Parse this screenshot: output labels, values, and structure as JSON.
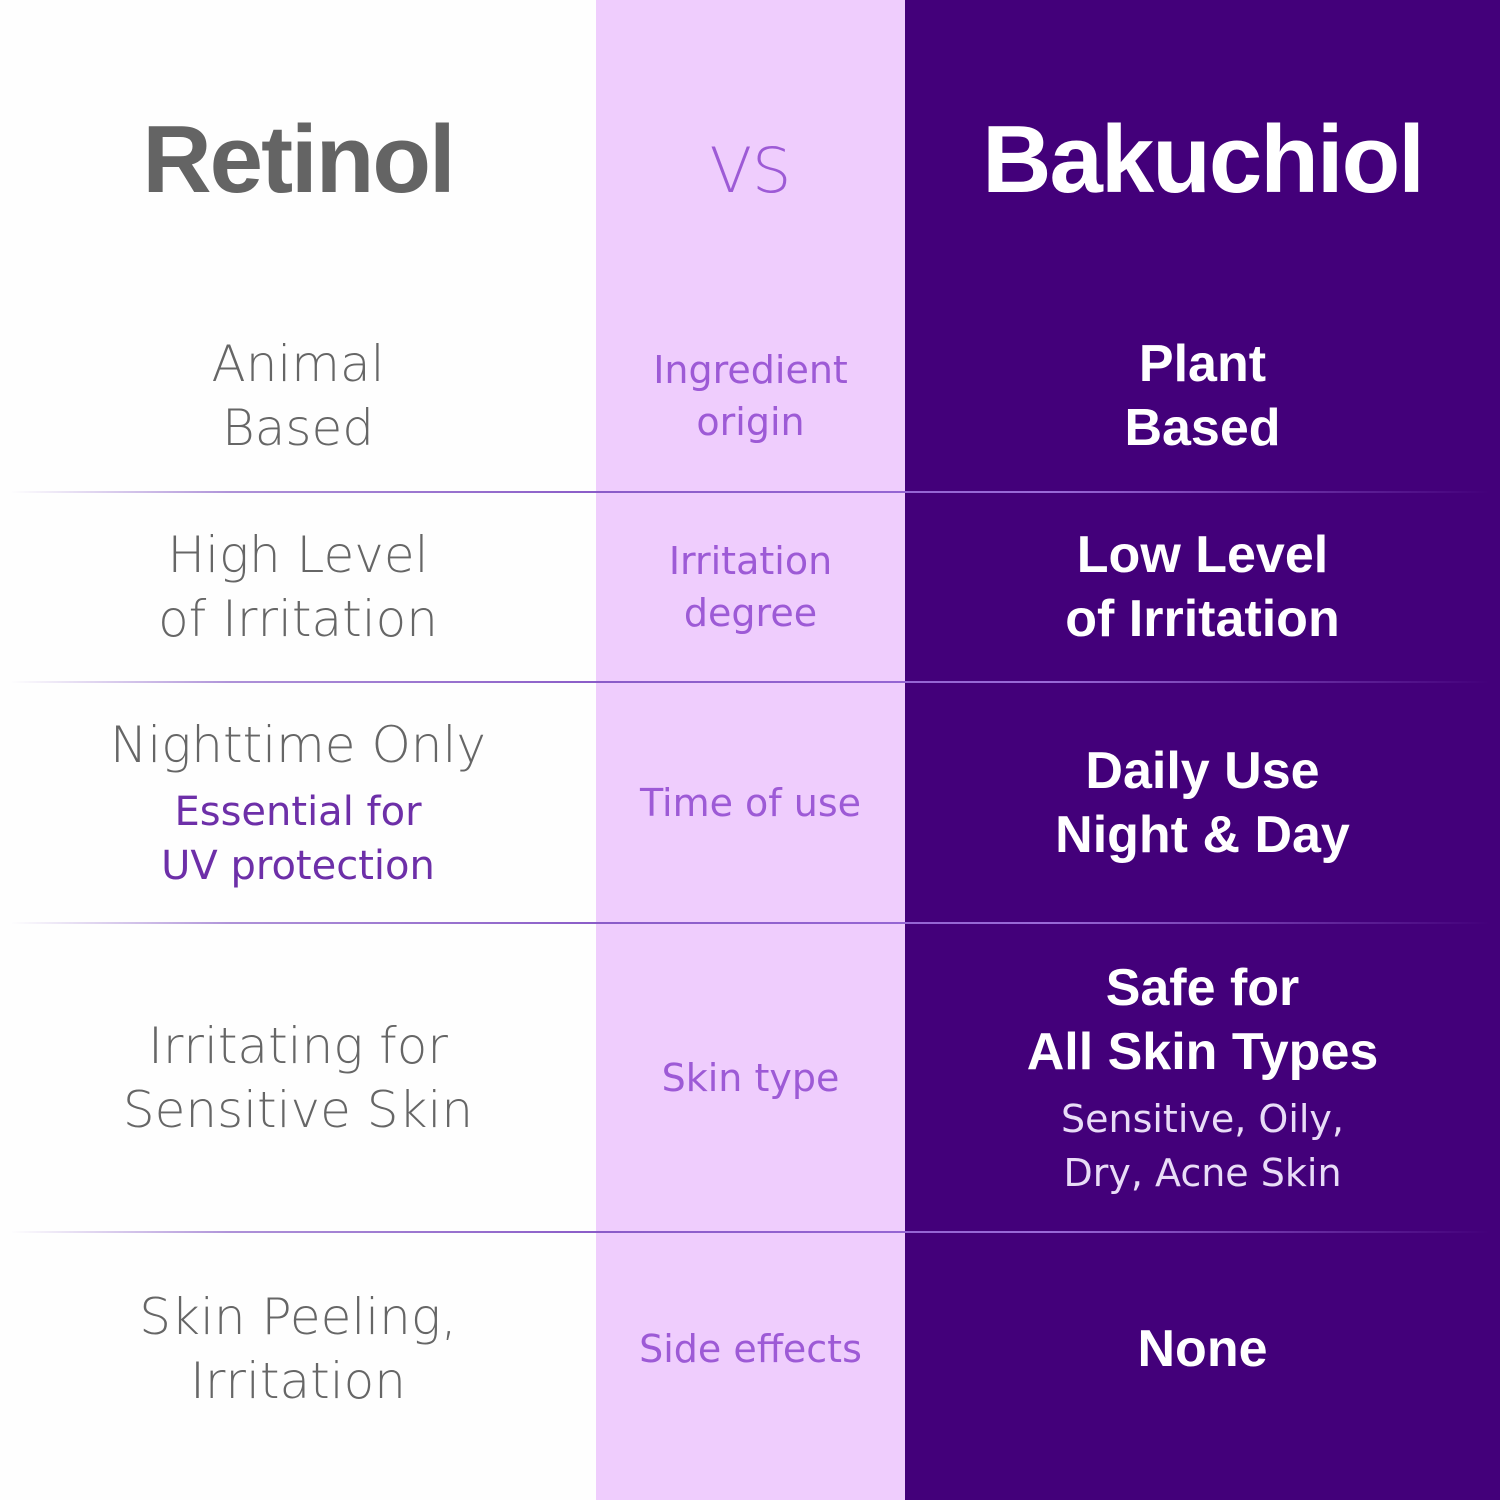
{
  "colors": {
    "left_bg": "#fefefe",
    "middle_bg": "#efcdfd",
    "right_bg": "#43007a",
    "accent": "#9d5ad6"
  },
  "header": {
    "left": "Retinol",
    "middle": "VS",
    "right": "Bakuchiol"
  },
  "rows": [
    {
      "left": [
        "Animal",
        "Based"
      ],
      "left_sub": [],
      "middle": [
        "Ingredient",
        "origin"
      ],
      "right": [
        "Plant",
        "Based"
      ],
      "right_sub": []
    },
    {
      "left": [
        "High Level",
        "of Irritation"
      ],
      "left_sub": [],
      "middle": [
        "Irritation",
        "degree"
      ],
      "right": [
        "Low Level",
        "of Irritation"
      ],
      "right_sub": []
    },
    {
      "left": [
        "Nighttime Only"
      ],
      "left_sub": [
        "Essential for",
        "UV protection"
      ],
      "middle": [
        "Time of use"
      ],
      "right": [
        "Daily Use",
        "Night & Day"
      ],
      "right_sub": []
    },
    {
      "left": [
        "Irritating for",
        "Sensitive Skin"
      ],
      "left_sub": [],
      "middle": [
        "Skin type"
      ],
      "right": [
        "Safe for",
        "All Skin Types"
      ],
      "right_sub": [
        "Sensitive, Oily,",
        "Dry, Acne Skin"
      ]
    },
    {
      "left": [
        "Skin Peeling,",
        "Irritation"
      ],
      "left_sub": [],
      "middle": [
        "Side effects"
      ],
      "right": [
        "None"
      ],
      "right_sub": []
    }
  ]
}
